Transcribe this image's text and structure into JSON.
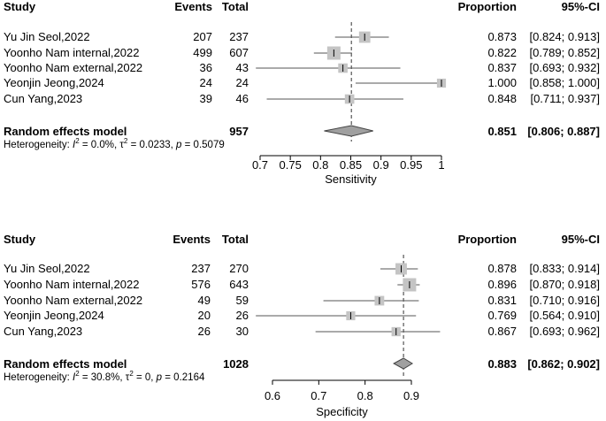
{
  "chart_data": [
    {
      "type": "forest",
      "measure": "Sensitivity",
      "headers": {
        "study": "Study",
        "events": "Events",
        "total": "Total",
        "proportion": "Proportion",
        "ci": "95%-CI"
      },
      "studies": [
        {
          "name": "Yu Jin Seol,2022",
          "events": "207",
          "total": "237",
          "proportion": 0.873,
          "lower": 0.824,
          "upper": 0.913,
          "prop_text": "0.873",
          "ci_text": "[0.824; 0.913]"
        },
        {
          "name": "Yoonho Nam internal,2022",
          "events": "499",
          "total": "607",
          "proportion": 0.822,
          "lower": 0.789,
          "upper": 0.852,
          "prop_text": "0.822",
          "ci_text": "[0.789; 0.852]"
        },
        {
          "name": "Yoonho Nam external,2022",
          "events": "36",
          "total": "43",
          "proportion": 0.837,
          "lower": 0.693,
          "upper": 0.932,
          "prop_text": "0.837",
          "ci_text": "[0.693; 0.932]"
        },
        {
          "name": "Yeonjin Jeong,2024",
          "events": "24",
          "total": "24",
          "proportion": 1.0,
          "lower": 0.858,
          "upper": 1.0,
          "prop_text": "1.000",
          "ci_text": "[0.858; 1.000]"
        },
        {
          "name": "Cun Yang,2023",
          "events": "39",
          "total": "46",
          "proportion": 0.848,
          "lower": 0.711,
          "upper": 0.937,
          "prop_text": "0.848",
          "ci_text": "[0.711; 0.937]"
        }
      ],
      "pooled": {
        "label": "Random effects model",
        "total": "957",
        "proportion": 0.851,
        "lower": 0.806,
        "upper": 0.887,
        "prop_text": "0.851",
        "ci_text": "[0.806; 0.887]"
      },
      "heterogeneity": {
        "prefix": "Heterogeneity: ",
        "i2_symbol": "I",
        "i2_exp": "2",
        "i2_value": " = 0.0%, τ",
        "tau2_exp": "2",
        "tau2_value": " = 0.0233, ",
        "p_symbol": "p",
        "p_value": " = 0.5079"
      },
      "xaxis": {
        "range": [
          0.7,
          1.0
        ],
        "ticks": [
          0.7,
          0.75,
          0.8,
          0.85,
          0.9,
          0.95,
          1.0
        ],
        "tick_labels": [
          "0.7",
          "0.75",
          "0.8",
          "0.85",
          "0.9",
          "0.95",
          "1"
        ],
        "label": "Sensitivity"
      }
    },
    {
      "type": "forest",
      "measure": "Specificity",
      "headers": {
        "study": "Study",
        "events": "Events",
        "total": "Total",
        "proportion": "Proportion",
        "ci": "95%-CI"
      },
      "studies": [
        {
          "name": "Yu Jin Seol,2022",
          "events": "237",
          "total": "270",
          "proportion": 0.878,
          "lower": 0.833,
          "upper": 0.914,
          "prop_text": "0.878",
          "ci_text": "[0.833; 0.914]"
        },
        {
          "name": "Yoonho Nam internal,2022",
          "events": "576",
          "total": "643",
          "proportion": 0.896,
          "lower": 0.87,
          "upper": 0.918,
          "prop_text": "0.896",
          "ci_text": "[0.870; 0.918]"
        },
        {
          "name": "Yoonho Nam external,2022",
          "events": "49",
          "total": "59",
          "proportion": 0.831,
          "lower": 0.71,
          "upper": 0.916,
          "prop_text": "0.831",
          "ci_text": "[0.710; 0.916]"
        },
        {
          "name": "Yeonjin Jeong,2024",
          "events": "20",
          "total": "26",
          "proportion": 0.769,
          "lower": 0.564,
          "upper": 0.91,
          "prop_text": "0.769",
          "ci_text": "[0.564; 0.910]"
        },
        {
          "name": "Cun Yang,2023",
          "events": "26",
          "total": "30",
          "proportion": 0.867,
          "lower": 0.693,
          "upper": 0.962,
          "prop_text": "0.867",
          "ci_text": "[0.693; 0.962]"
        }
      ],
      "pooled": {
        "label": "Random effects model",
        "total": "1028",
        "proportion": 0.883,
        "lower": 0.862,
        "upper": 0.902,
        "prop_text": "0.883",
        "ci_text": "[0.862; 0.902]"
      },
      "heterogeneity": {
        "prefix": "Heterogeneity: ",
        "i2_symbol": "I",
        "i2_exp": "2",
        "i2_value": " = 30.8%, τ",
        "tau2_exp": "2",
        "tau2_value": " = 0, ",
        "p_symbol": "p",
        "p_value": " = 0.2164"
      },
      "xaxis": {
        "range": [
          0.6,
          0.9
        ],
        "ticks": [
          0.6,
          0.7,
          0.8,
          0.9
        ],
        "tick_labels": [
          "0.6",
          "0.7",
          "0.8",
          "0.9"
        ],
        "label": "Specificity"
      }
    }
  ]
}
